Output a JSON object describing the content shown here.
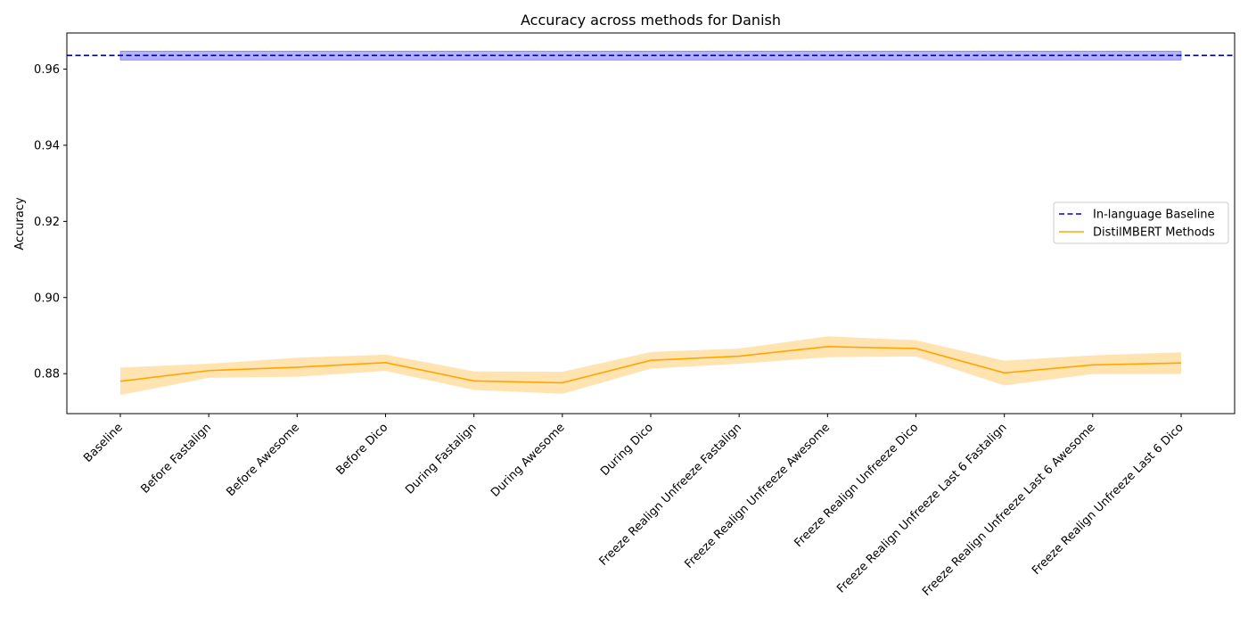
{
  "chart_data": {
    "type": "line",
    "title": "Accuracy across methods for Danish",
    "xlabel": "",
    "ylabel": "Accuracy",
    "ylim": [
      0.8695,
      0.9695
    ],
    "yticks": [
      0.88,
      0.9,
      0.92,
      0.94,
      0.96
    ],
    "ytick_labels": [
      "0.88",
      "0.90",
      "0.92",
      "0.94",
      "0.96"
    ],
    "categories": [
      "Baseline",
      "Before Fastalign",
      "Before Awesome",
      "Before Dico",
      "During Fastalign",
      "During Awesome",
      "During Dico",
      "Freeze Realign Unfreeze Fastalign",
      "Freeze Realign Unfreeze Awesome",
      "Freeze Realign Unfreeze Dico",
      "Freeze Realign Unfreeze Last 6 Fastalign",
      "Freeze Realign Unfreeze Last 6 Awesome",
      "Freeze Realign Unfreeze Last 6 Dico"
    ],
    "series": [
      {
        "name": "DistilMBERT Methods",
        "color": "#ffa500",
        "band_color": "#ffa500",
        "values": [
          0.878,
          0.8808,
          0.8817,
          0.8829,
          0.8781,
          0.8776,
          0.8835,
          0.8846,
          0.8871,
          0.8866,
          0.8802,
          0.8823,
          0.8828
        ],
        "lower": [
          0.8744,
          0.8789,
          0.8792,
          0.8807,
          0.8757,
          0.8747,
          0.8813,
          0.8826,
          0.8843,
          0.8845,
          0.8769,
          0.8799,
          0.8799
        ],
        "upper": [
          0.8816,
          0.8826,
          0.8842,
          0.885,
          0.8806,
          0.8805,
          0.8857,
          0.8866,
          0.8898,
          0.8888,
          0.8834,
          0.8848,
          0.8856
        ]
      }
    ],
    "reference": {
      "name": "In-language Baseline",
      "color": "#0000cc",
      "band_color": "#0000ff",
      "value": 0.9636,
      "lower": 0.9624,
      "upper": 0.9647
    },
    "legend_position": "right",
    "grid": false
  }
}
